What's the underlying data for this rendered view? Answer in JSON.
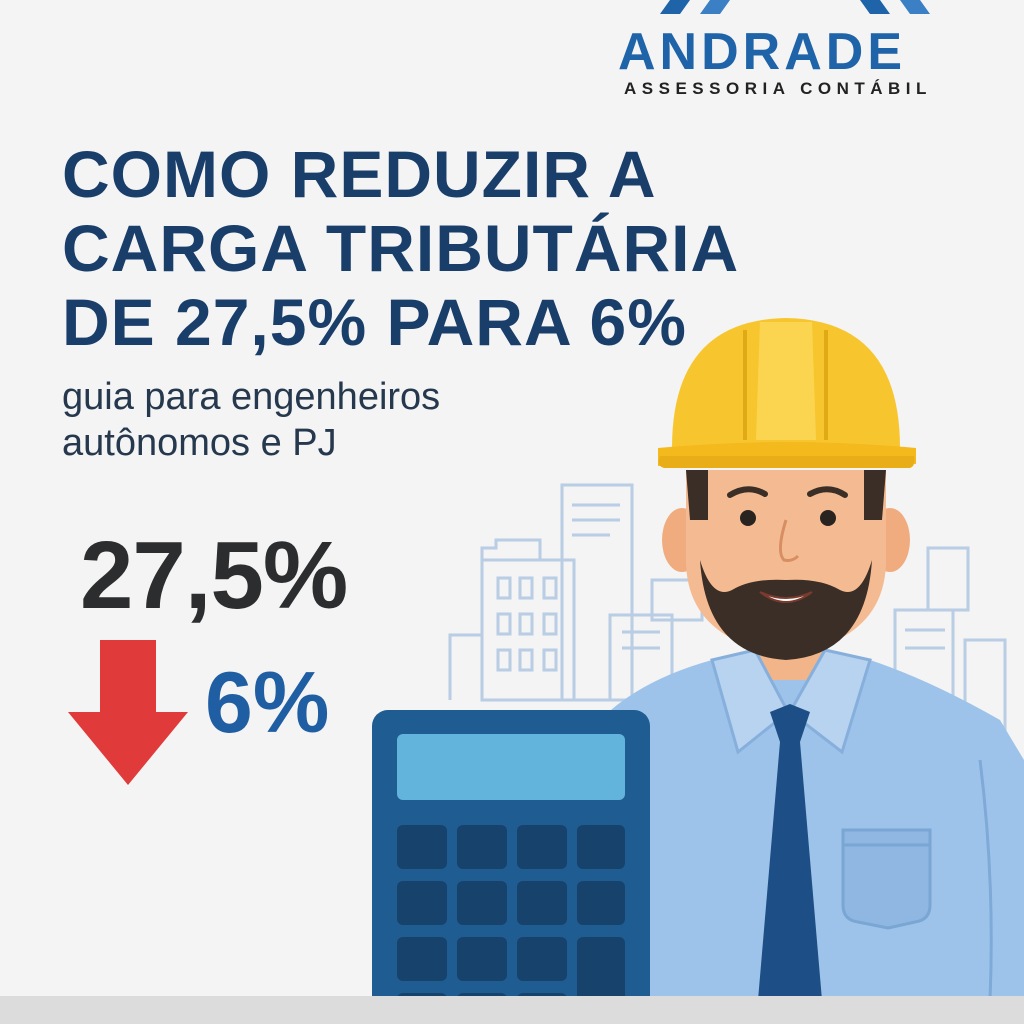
{
  "brand": {
    "name": "ANDRADE",
    "tagline": "ASSESSORIA CONTÁBIL",
    "color": "#1f63a8"
  },
  "headline": {
    "lines": [
      "COMO REDUZIR A",
      "CARGA TRIBUTÁRIA",
      "DE 27,5% PARA 6%"
    ],
    "color": "#1a3e6a"
  },
  "subtitle": {
    "lines": [
      "guia para engenheiros",
      "autônomos e PJ"
    ]
  },
  "rates": {
    "from": "27,5%",
    "to": "6%",
    "arrow_color": "#e03a3a",
    "to_color": "#1f5ea3"
  },
  "illustration": {
    "icons": [
      "engineer-icon",
      "hard-hat-icon",
      "calculator-icon",
      "city-buildings-icon",
      "down-arrow-icon"
    ],
    "hat_color": "#f7c62f",
    "shirt_color": "#9dc3ea",
    "tie_color": "#1d4e86",
    "calculator_color": "#1f5c92"
  }
}
